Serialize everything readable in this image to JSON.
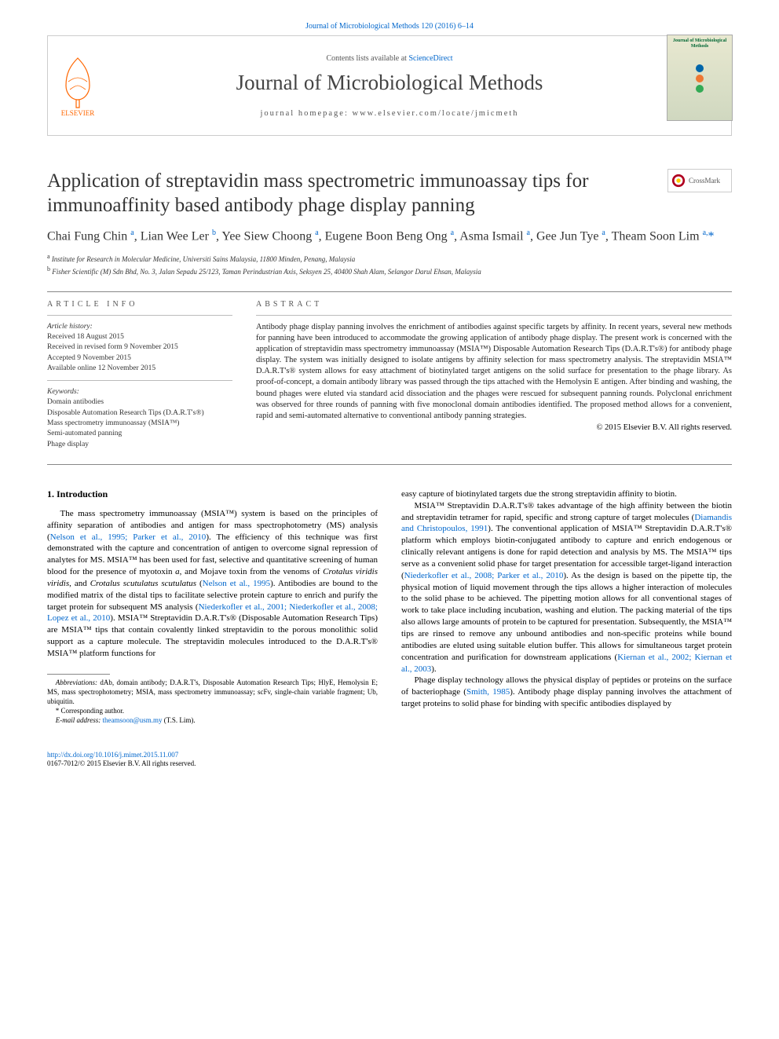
{
  "header": {
    "citation_line": "Journal of Microbiological Methods 120 (2016) 6–14",
    "contents_prefix": "Contents lists available at ",
    "contents_link": "ScienceDirect",
    "journal_name": "Journal of Microbiological Methods",
    "homepage_label": "journal homepage: ",
    "homepage_url": "www.elsevier.com/locate/jmicmeth",
    "elsevier_label": "ELSEVIER",
    "cover_title": "Journal of Microbiological Methods",
    "cover_dot_colors": [
      "#0066aa",
      "#ee7733",
      "#33aa55"
    ]
  },
  "crossmark_label": "CrossMark",
  "title": "Application of streptavidin mass spectrometric immunoassay tips for immunoaffinity based antibody phage display panning",
  "authors_html": "Chai Fung Chin <sup>a</sup>, Lian Wee Ler <sup>b</sup>, Yee Siew Choong <sup>a</sup>, Eugene Boon Beng Ong <sup>a</sup>, Asma Ismail <sup>a</sup>, Gee Jun Tye <sup>a</sup>, Theam Soon Lim <sup>a,</sup><span class='star'>*</span>",
  "affiliations": {
    "a": "Institute for Research in Molecular Medicine, Universiti Sains Malaysia, 11800 Minden, Penang, Malaysia",
    "b": "Fisher Scientific (M) Sdn Bhd, No. 3, Jalan Sepadu 25/123, Taman Perindustrian Axis, Seksyen 25, 40400 Shah Alam, Selangor Darul Ehsan, Malaysia"
  },
  "article_info": {
    "label": "ARTICLE INFO",
    "history_label": "Article history:",
    "received": "Received 18 August 2015",
    "revised": "Received in revised form 9 November 2015",
    "accepted": "Accepted 9 November 2015",
    "online": "Available online 12 November 2015",
    "keywords_label": "Keywords:",
    "keywords": [
      "Domain antibodies",
      "Disposable Automation Research Tips (D.A.R.T's®)",
      "Mass spectrometry immunoassay (MSIA™)",
      "Semi-automated panning",
      "Phage display"
    ]
  },
  "abstract": {
    "label": "ABSTRACT",
    "text": "Antibody phage display panning involves the enrichment of antibodies against specific targets by affinity. In recent years, several new methods for panning have been introduced to accommodate the growing application of antibody phage display. The present work is concerned with the application of streptavidin mass spectrometry immunoassay (MSIA™) Disposable Automation Research Tips (D.A.R.T's®) for antibody phage display. The system was initially designed to isolate antigens by affinity selection for mass spectrometry analysis. The streptavidin MSIA™ D.A.R.T's® system allows for easy attachment of biotinylated target antigens on the solid surface for presentation to the phage library. As proof-of-concept, a domain antibody library was passed through the tips attached with the Hemolysin E antigen. After binding and washing, the bound phages were eluted via standard acid dissociation and the phages were rescued for subsequent panning rounds. Polyclonal enrichment was observed for three rounds of panning with five monoclonal domain antibodies identified. The proposed method allows for a convenient, rapid and semi-automated alternative to conventional antibody panning strategies.",
    "copyright": "© 2015 Elsevier B.V. All rights reserved."
  },
  "section1": {
    "heading": "1. Introduction",
    "p1_pre": "The mass spectrometry immunoassay (MSIA™) system is based on the principles of affinity separation of antibodies and antigen for mass spectrophotometry (MS) analysis (",
    "p1_c1": "Nelson et al., 1995; Parker et al., 2010",
    "p1_mid1": "). The efficiency of this technique was first demonstrated with the capture and concentration of antigen to overcome signal repression of analytes for MS. MSIA™ has been used for fast, selective and quantitative screening of human blood for the presence of myotoxin ",
    "p1_i1": "a",
    "p1_mid2": ", and Mojave toxin from the venoms of ",
    "p1_i2": "Crotalus viridis viridis",
    "p1_mid3": ", and ",
    "p1_i3": "Crotalus scutulatus scutulatus",
    "p1_mid4": " (",
    "p1_c2": "Nelson et al., 1995",
    "p1_mid5": "). Antibodies are bound to the modified matrix of the distal tips to facilitate selective protein capture to enrich and purify the target protein for subsequent MS analysis (",
    "p1_c3": "Niederkofler et al., 2001; Niederkofler et al., 2008; Lopez et al., 2010",
    "p1_post": "). MSIA™ Streptavidin D.A.R.T's® (Disposable Automation Research Tips) are MSIA™ tips that contain covalently linked streptavidin to the porous monolithic solid support as a capture molecule. The streptavidin molecules introduced to the D.A.R.T's® MSIA™ platform functions for",
    "col2_p0": "easy capture of biotinylated targets due the strong streptavidin affinity to biotin.",
    "p2_pre": "MSIA™ Streptavidin D.A.R.T's® takes advantage of the high affinity between the biotin and streptavidin tetramer for rapid, specific and strong capture of target molecules (",
    "p2_c1": "Diamandis and Christopoulos, 1991",
    "p2_mid1": "). The conventional application of MSIA™ Streptavidin D.A.R.T's® platform which employs biotin-conjugated antibody to capture and enrich endogenous or clinically relevant antigens is done for rapid detection and analysis by MS. The MSIA™ tips serve as a convenient solid phase for target presentation for accessible target-ligand interaction (",
    "p2_c2": "Niederkofler et al., 2008; Parker et al., 2010",
    "p2_mid2": "). As the design is based on the pipette tip, the physical motion of liquid movement through the tips allows a higher interaction of molecules to the solid phase to be achieved. The pipetting motion allows for all conventional stages of work to take place including incubation, washing and elution. The packing material of the tips also allows large amounts of protein to be captured for presentation. Subsequently, the MSIA™ tips are rinsed to remove any unbound antibodies and non-specific proteins while bound antibodies are eluted using suitable elution buffer. This allows for simultaneous target protein concentration and purification for downstream applications (",
    "p2_c3": "Kiernan et al., 2002; Kiernan et al., 2003",
    "p2_post": ").",
    "p3_pre": "Phage display technology allows the physical display of peptides or proteins on the surface of bacteriophage (",
    "p3_c1": "Smith, 1985",
    "p3_post": "). Antibody phage display panning involves the attachment of target proteins to solid phase for binding with specific antibodies displayed by"
  },
  "footnotes": {
    "abbrev_label": "Abbreviations:",
    "abbrev_text": " dAb, domain antibody; D.A.R.T's, Disposable Automation Research Tips; HlyE, Hemolysin E; MS, mass spectrophotometry; MSIA, mass spectrometry immunoassay; scFv, single-chain variable fragment; Ub, ubiquitin.",
    "corr_label": "* Corresponding author.",
    "email_label": "E-mail address: ",
    "email": "theamsoon@usm.my",
    "email_suffix": " (T.S. Lim)."
  },
  "footer": {
    "doi": "http://dx.doi.org/10.1016/j.mimet.2015.11.007",
    "issn_line": "0167-7012/© 2015 Elsevier B.V. All rights reserved."
  },
  "colors": {
    "link": "#0066cc",
    "text": "#222222",
    "rule": "#888888"
  }
}
